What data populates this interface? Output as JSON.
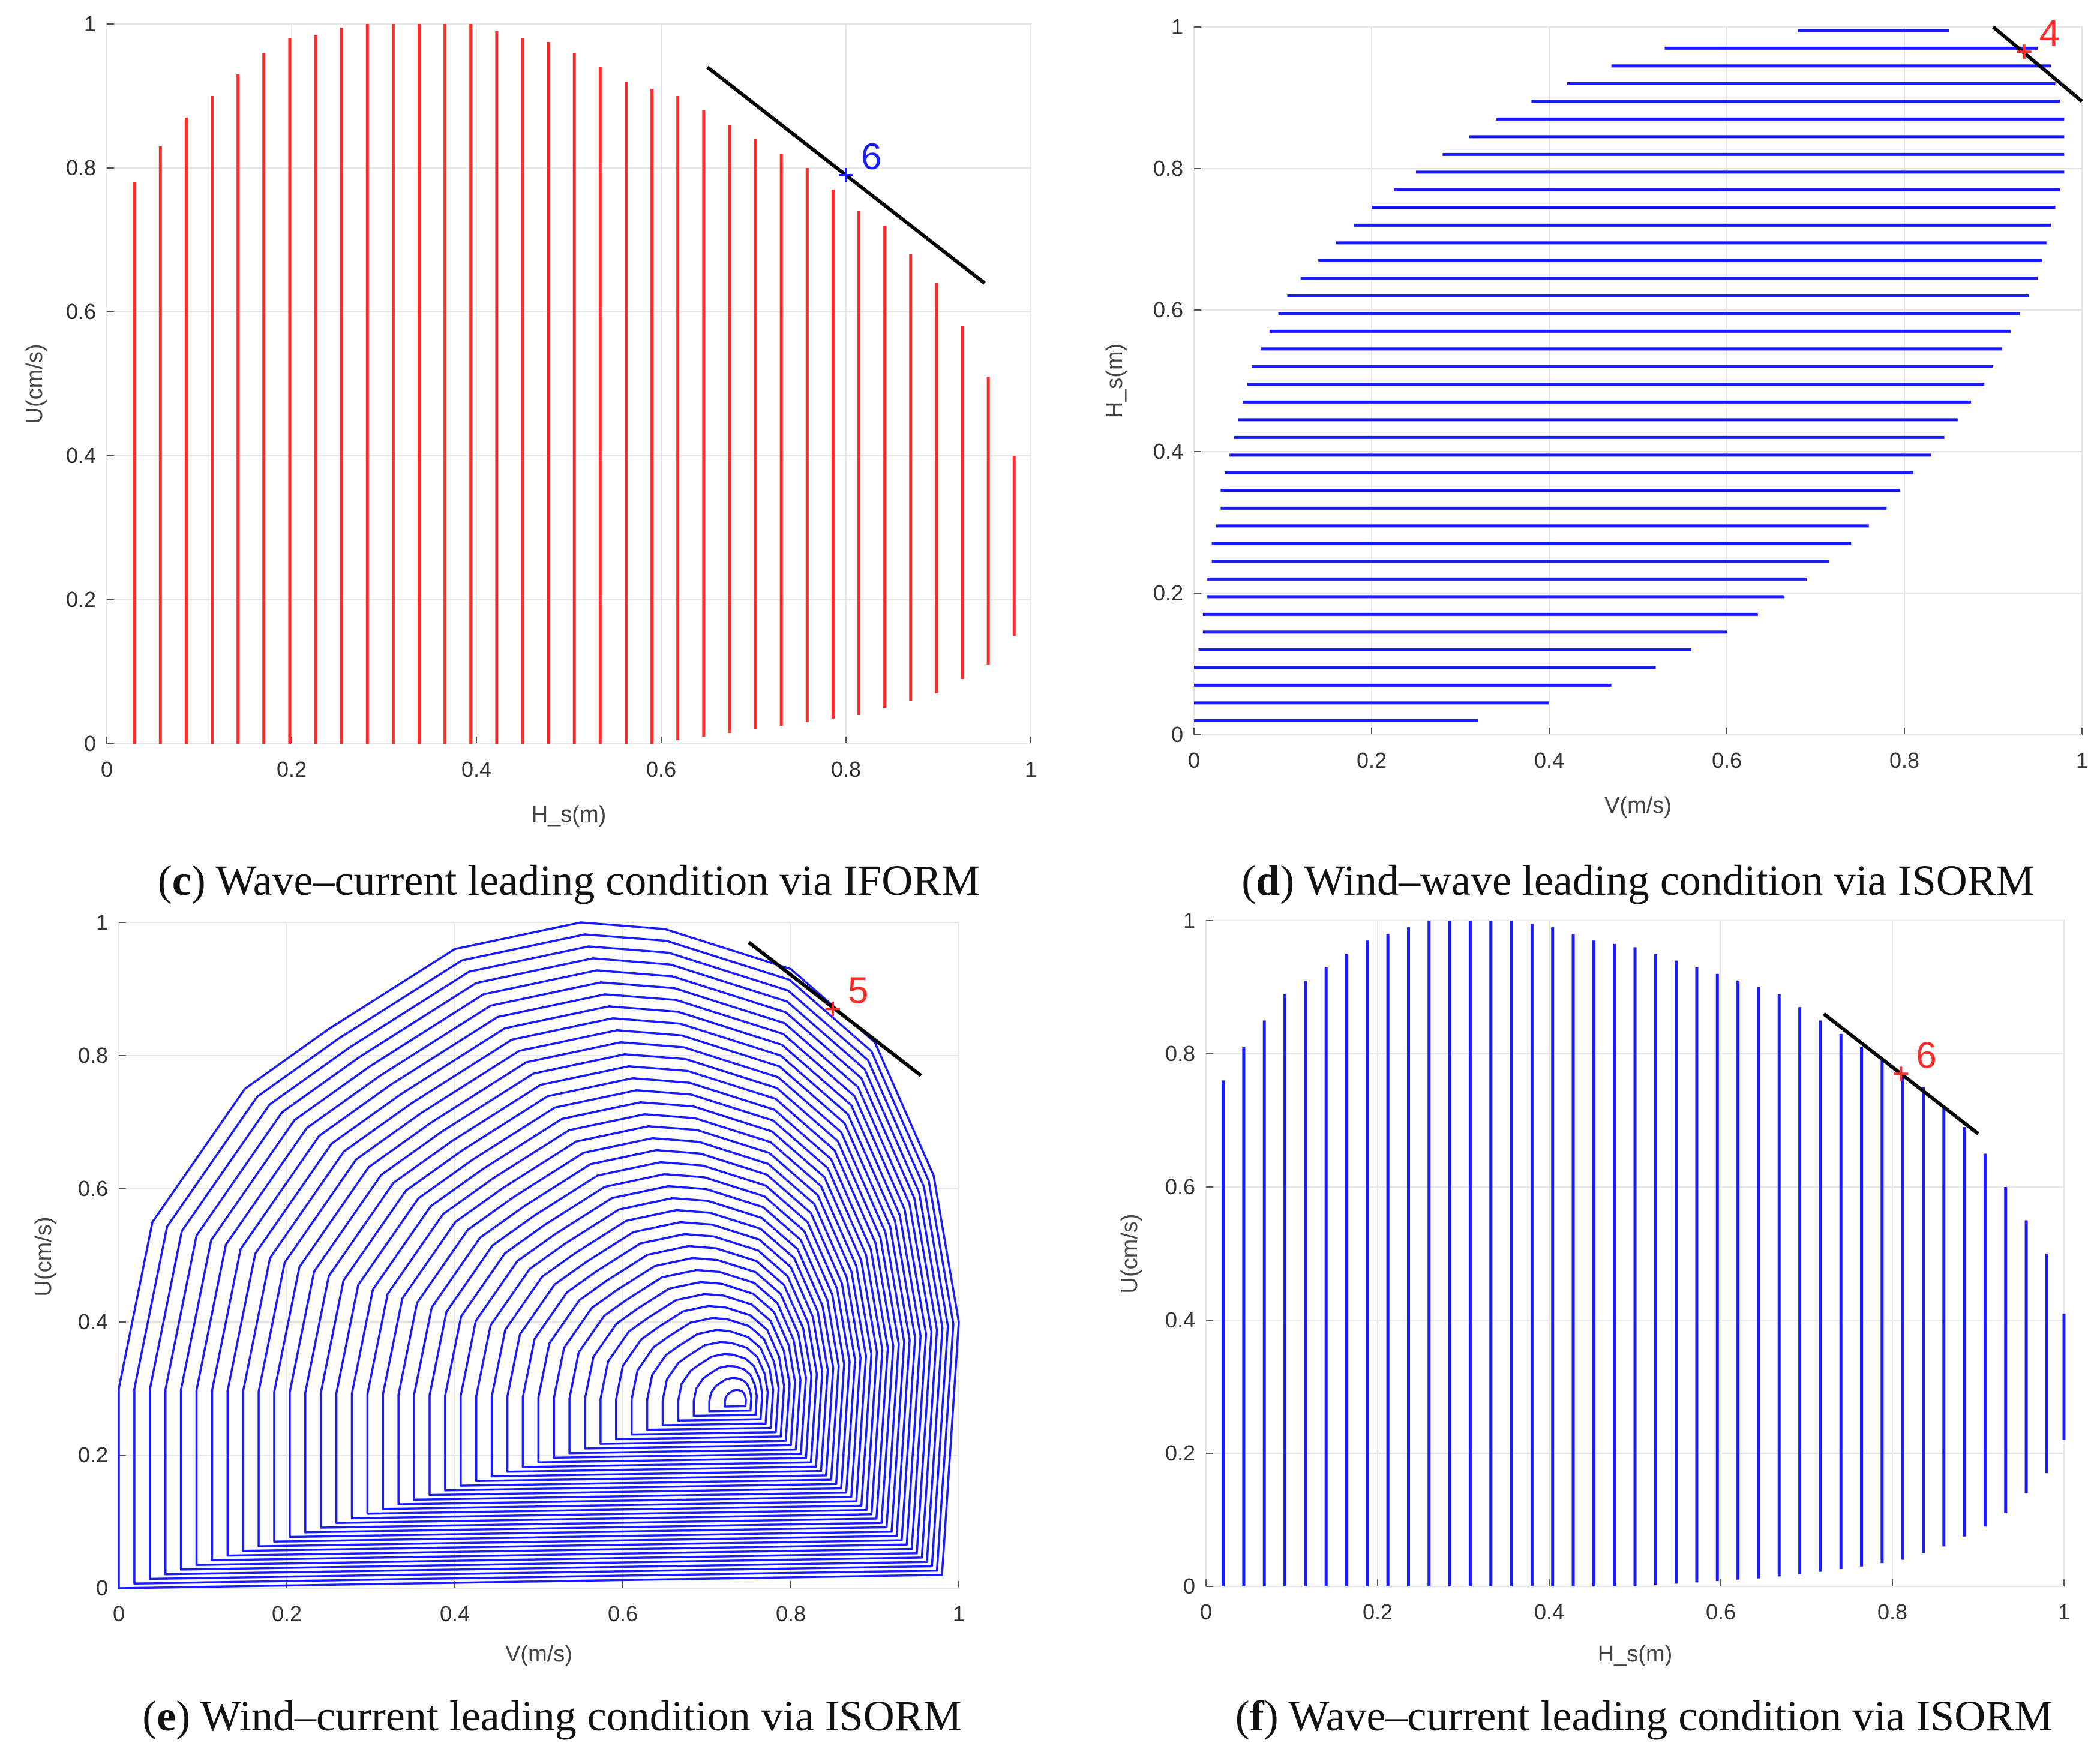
{
  "panels": [
    {
      "id": "c",
      "caption_letter": "c",
      "caption_text": "Wave–current leading condition via IFORM",
      "chart_data": {
        "type": "line",
        "style": "vertical-hatch",
        "color": "#ff2a2a",
        "xlabel": "H_s(m)",
        "ylabel": "U(cm/s)",
        "xlim": [
          0,
          1
        ],
        "ylim": [
          0,
          1
        ],
        "xticks": [
          "0",
          "0.2",
          "0.4",
          "0.6",
          "0.8",
          "1"
        ],
        "yticks": [
          "0",
          "0.2",
          "0.4",
          "0.6",
          "0.8",
          "1"
        ],
        "contour_x": [
          0.03,
          0.058,
          0.086,
          0.114,
          0.142,
          0.17,
          0.198,
          0.226,
          0.254,
          0.282,
          0.31,
          0.338,
          0.366,
          0.394,
          0.422,
          0.45,
          0.478,
          0.506,
          0.534,
          0.562,
          0.59,
          0.618,
          0.646,
          0.674,
          0.702,
          0.73,
          0.758,
          0.786,
          0.814,
          0.842,
          0.87,
          0.898,
          0.926,
          0.954,
          0.982
        ],
        "contour_top": [
          0.78,
          0.83,
          0.87,
          0.9,
          0.93,
          0.96,
          0.98,
          0.985,
          0.995,
          1.0,
          1.0,
          1.0,
          1.0,
          1.0,
          0.99,
          0.98,
          0.975,
          0.96,
          0.94,
          0.92,
          0.91,
          0.9,
          0.88,
          0.86,
          0.84,
          0.82,
          0.8,
          0.77,
          0.74,
          0.72,
          0.68,
          0.64,
          0.58,
          0.51,
          0.4
        ],
        "contour_bottom": [
          0,
          0,
          0,
          0,
          0,
          0,
          0,
          0,
          0,
          0,
          0,
          0,
          0,
          0,
          0,
          0,
          0,
          0,
          0,
          0,
          0,
          0.005,
          0.01,
          0.015,
          0.02,
          0.025,
          0.03,
          0.035,
          0.04,
          0.05,
          0.06,
          0.07,
          0.09,
          0.11,
          0.15
        ],
        "tangent_line": {
          "x": [
            0.65,
            0.95
          ],
          "y": [
            0.94,
            0.64
          ]
        },
        "design_point": {
          "x": 0.8,
          "y": 0.79,
          "label": "6",
          "color": "#1a1aff"
        }
      }
    },
    {
      "id": "d",
      "caption_letter": "d",
      "caption_text": "Wind–wave leading condition via ISORM",
      "chart_data": {
        "type": "line",
        "style": "horizontal-hatch",
        "color": "#1a1aff",
        "xlabel": "V(m/s)",
        "ylabel": "H_s(m)",
        "xlim": [
          0,
          1
        ],
        "ylim": [
          0,
          1
        ],
        "xticks": [
          "0",
          "0.2",
          "0.4",
          "0.6",
          "0.8",
          "1"
        ],
        "yticks": [
          "0",
          "0.2",
          "0.4",
          "0.6",
          "0.8",
          "1"
        ],
        "contour_y": [
          0.02,
          0.045,
          0.07,
          0.095,
          0.12,
          0.145,
          0.17,
          0.195,
          0.22,
          0.245,
          0.27,
          0.295,
          0.32,
          0.345,
          0.37,
          0.395,
          0.42,
          0.445,
          0.47,
          0.495,
          0.52,
          0.545,
          0.57,
          0.595,
          0.62,
          0.645,
          0.67,
          0.695,
          0.72,
          0.745,
          0.77,
          0.795,
          0.82,
          0.845,
          0.87,
          0.895,
          0.92,
          0.945,
          0.97,
          0.995
        ],
        "contour_left": [
          0.0,
          0.0,
          0.0,
          0.0,
          0.005,
          0.01,
          0.01,
          0.015,
          0.015,
          0.02,
          0.02,
          0.025,
          0.03,
          0.03,
          0.035,
          0.04,
          0.045,
          0.05,
          0.055,
          0.06,
          0.065,
          0.075,
          0.085,
          0.095,
          0.105,
          0.12,
          0.14,
          0.16,
          0.18,
          0.2,
          0.225,
          0.25,
          0.28,
          0.31,
          0.34,
          0.38,
          0.42,
          0.47,
          0.53,
          0.68
        ],
        "contour_right": [
          0.32,
          0.4,
          0.47,
          0.52,
          0.56,
          0.6,
          0.635,
          0.665,
          0.69,
          0.715,
          0.74,
          0.76,
          0.78,
          0.795,
          0.81,
          0.83,
          0.845,
          0.86,
          0.875,
          0.89,
          0.9,
          0.91,
          0.92,
          0.93,
          0.94,
          0.95,
          0.955,
          0.96,
          0.965,
          0.97,
          0.975,
          0.98,
          0.98,
          0.98,
          0.98,
          0.975,
          0.97,
          0.965,
          0.95,
          0.85
        ],
        "tangent_line": {
          "x": [
            0.9,
            1.0
          ],
          "y": [
            1.0,
            0.895
          ]
        },
        "design_point": {
          "x": 0.935,
          "y": 0.965,
          "label": "4",
          "color": "#ff2a2a"
        }
      }
    },
    {
      "id": "e",
      "caption_letter": "e",
      "caption_text": "Wind–current leading condition via ISORM",
      "chart_data": {
        "type": "line",
        "style": "nested-contours",
        "color": "#1a1aff",
        "xlabel": "V(m/s)",
        "ylabel": "U(cm/s)",
        "xlim": [
          0,
          1
        ],
        "ylim": [
          0,
          1
        ],
        "xticks": [
          "0",
          "0.2",
          "0.4",
          "0.6",
          "0.8",
          "1"
        ],
        "yticks": [
          "0",
          "0.2",
          "0.4",
          "0.6",
          "0.8",
          "1"
        ],
        "contour_count": 40,
        "outer_contour_points": [
          [
            0.0,
            0.0
          ],
          [
            0.98,
            0.02
          ],
          [
            1.0,
            0.4
          ],
          [
            0.97,
            0.62
          ],
          [
            0.9,
            0.82
          ],
          [
            0.8,
            0.93
          ],
          [
            0.65,
            0.99
          ],
          [
            0.55,
            1.0
          ],
          [
            0.4,
            0.96
          ],
          [
            0.25,
            0.84
          ],
          [
            0.15,
            0.75
          ],
          [
            0.04,
            0.55
          ],
          [
            0.0,
            0.3
          ]
        ],
        "inner_contour_center": [
          0.74,
          0.28
        ],
        "tangent_line": {
          "x": [
            0.75,
            0.955
          ],
          "y": [
            0.97,
            0.77
          ]
        },
        "design_point": {
          "x": 0.85,
          "y": 0.87,
          "label": "5",
          "color": "#ff2a2a"
        }
      }
    },
    {
      "id": "f",
      "caption_letter": "f",
      "caption_text": "Wave–current leading condition via ISORM",
      "chart_data": {
        "type": "line",
        "style": "vertical-hatch",
        "color": "#1a1aff",
        "xlabel": "H_s(m)",
        "ylabel": "U(cm/s)",
        "xlim": [
          0,
          1
        ],
        "ylim": [
          0,
          1
        ],
        "xticks": [
          "0",
          "0.2",
          "0.4",
          "0.6",
          "0.8",
          "1"
        ],
        "yticks": [
          "0",
          "0.2",
          "0.4",
          "0.6",
          "0.8",
          "1"
        ],
        "contour_x": [
          0.02,
          0.044,
          0.068,
          0.092,
          0.116,
          0.14,
          0.164,
          0.188,
          0.212,
          0.236,
          0.26,
          0.284,
          0.308,
          0.332,
          0.356,
          0.38,
          0.404,
          0.428,
          0.452,
          0.476,
          0.5,
          0.524,
          0.548,
          0.572,
          0.596,
          0.62,
          0.644,
          0.668,
          0.692,
          0.716,
          0.74,
          0.764,
          0.788,
          0.812,
          0.836,
          0.86,
          0.884,
          0.908,
          0.932,
          0.956,
          0.98,
          1.0
        ],
        "contour_top": [
          0.76,
          0.81,
          0.85,
          0.89,
          0.91,
          0.93,
          0.95,
          0.97,
          0.98,
          0.99,
          1.0,
          1.0,
          1.0,
          1.0,
          1.0,
          0.995,
          0.99,
          0.98,
          0.97,
          0.965,
          0.96,
          0.95,
          0.94,
          0.93,
          0.92,
          0.91,
          0.9,
          0.89,
          0.87,
          0.85,
          0.83,
          0.81,
          0.79,
          0.77,
          0.75,
          0.72,
          0.69,
          0.65,
          0.6,
          0.55,
          0.5,
          0.41
        ],
        "contour_bottom": [
          0,
          0,
          0,
          0,
          0,
          0,
          0,
          0,
          0,
          0,
          0,
          0,
          0,
          0,
          0,
          0,
          0,
          0,
          0,
          0,
          0,
          0.002,
          0.004,
          0.006,
          0.008,
          0.01,
          0.012,
          0.015,
          0.018,
          0.022,
          0.026,
          0.03,
          0.035,
          0.04,
          0.05,
          0.06,
          0.075,
          0.09,
          0.11,
          0.14,
          0.17,
          0.22
        ],
        "tangent_line": {
          "x": [
            0.72,
            0.9
          ],
          "y": [
            0.86,
            0.68
          ]
        },
        "design_point": {
          "x": 0.81,
          "y": 0.77,
          "label": "6",
          "color": "#ff2a2a"
        }
      }
    }
  ]
}
